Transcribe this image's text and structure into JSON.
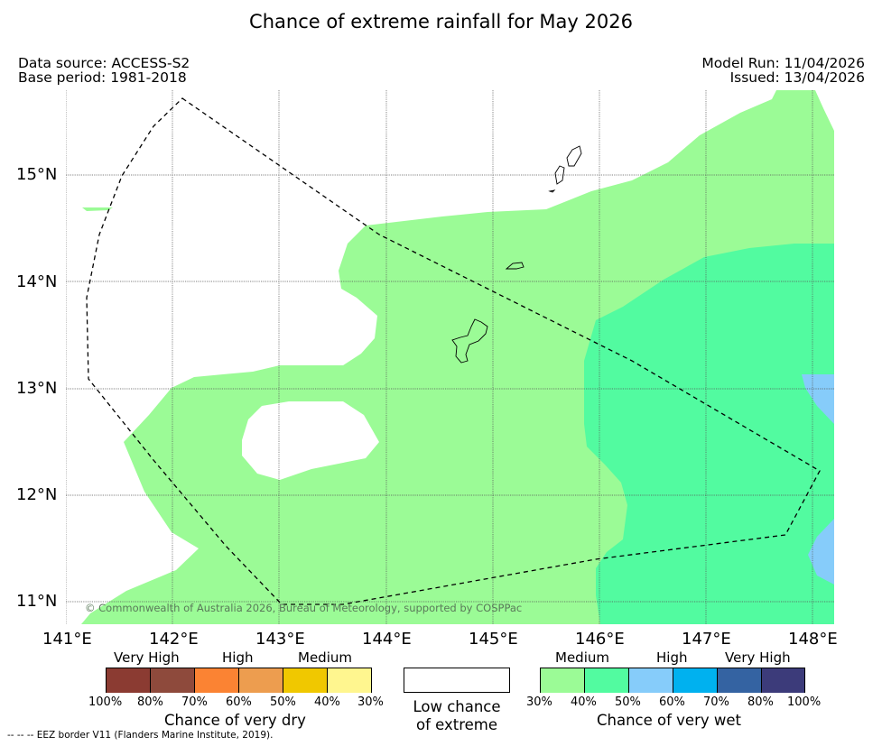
{
  "title": "Chance of extreme rainfall for May 2026",
  "header": {
    "data_source": "Data source: ACCESS-S2",
    "base_period": "Base period: 1981-2018",
    "model_run": "Model Run: 11/04/2026",
    "issued": "Issued: 13/04/2026"
  },
  "map": {
    "lon_range": [
      141,
      148.2
    ],
    "lat_range": [
      10.8,
      15.8
    ],
    "lon_ticks": [
      "141°E",
      "142°E",
      "143°E",
      "144°E",
      "145°E",
      "146°E",
      "147°E",
      "148°E"
    ],
    "lat_ticks": [
      "15°N",
      "14°N",
      "13°N",
      "12°N",
      "11°N"
    ],
    "copyright": "© Commonwealth of Australia 2026, Bureau of Meteorology, supported by COSPPac",
    "regions": [
      {
        "category": "Chance of very wet",
        "level": "Medium (30-40%)",
        "color": "#9bfb96"
      },
      {
        "category": "Chance of very wet",
        "level": "Medium (40-50%)",
        "color": "#52fba0"
      },
      {
        "category": "Chance of very wet",
        "level": "High (50-60%)",
        "color": "#86ccfa"
      }
    ],
    "eez_label": "EEZ border"
  },
  "legend": {
    "dry": {
      "labels_top": [
        "Very High",
        "High",
        "Medium"
      ],
      "colors": [
        "#8b3b32",
        "#8e4a3c",
        "#fb8333",
        "#ed9d4f",
        "#f0c800",
        "#fff68f"
      ],
      "ticks": [
        "100%",
        "80%",
        "70%",
        "60%",
        "50%",
        "40%",
        "30%"
      ],
      "title": "Chance of very dry"
    },
    "low": {
      "title_line1": "Low chance",
      "title_line2": "of extreme"
    },
    "wet": {
      "labels_top": [
        "Medium",
        "High",
        "Very High"
      ],
      "colors": [
        "#9bfb96",
        "#52fba0",
        "#86ccfa",
        "#00b1ef",
        "#3463a2",
        "#3c3b7a"
      ],
      "ticks": [
        "30%",
        "40%",
        "50%",
        "60%",
        "70%",
        "80%",
        "100%"
      ],
      "title": "Chance of very wet"
    }
  },
  "footnote": "--  --  -- EEZ border V11 (Flanders Marine Institute, 2019)."
}
